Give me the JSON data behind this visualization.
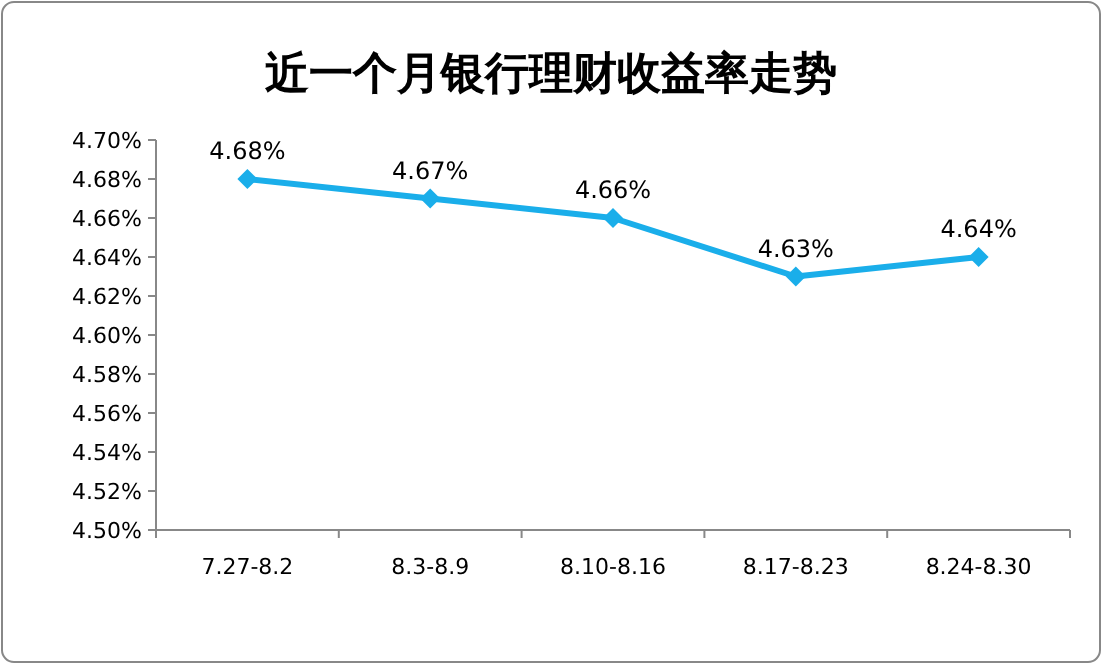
{
  "chart_data": {
    "type": "line",
    "title": "近一个月银行理财收益率走势",
    "categories": [
      "7.27-8.2",
      "8.3-8.9",
      "8.10-8.16",
      "8.17-8.23",
      "8.24-8.30"
    ],
    "values": [
      4.68,
      4.67,
      4.66,
      4.63,
      4.64
    ],
    "value_labels": [
      "4.68%",
      "4.67%",
      "4.66%",
      "4.63%",
      "4.64%"
    ],
    "color": "#1aaeea",
    "marker": "diamond",
    "line_style": "solid",
    "ylim": [
      4.5,
      4.7
    ],
    "yticks": [
      {
        "value": 4.5,
        "label": "4.50%"
      },
      {
        "value": 4.52,
        "label": "4.52%"
      },
      {
        "value": 4.54,
        "label": "4.54%"
      },
      {
        "value": 4.56,
        "label": "4.56%"
      },
      {
        "value": 4.58,
        "label": "4.58%"
      },
      {
        "value": 4.6,
        "label": "4.60%"
      },
      {
        "value": 4.62,
        "label": "4.62%"
      },
      {
        "value": 4.64,
        "label": "4.64%"
      },
      {
        "value": 4.66,
        "label": "4.66%"
      },
      {
        "value": 4.68,
        "label": "4.68%"
      },
      {
        "value": 4.7,
        "label": "4.70%"
      }
    ]
  }
}
